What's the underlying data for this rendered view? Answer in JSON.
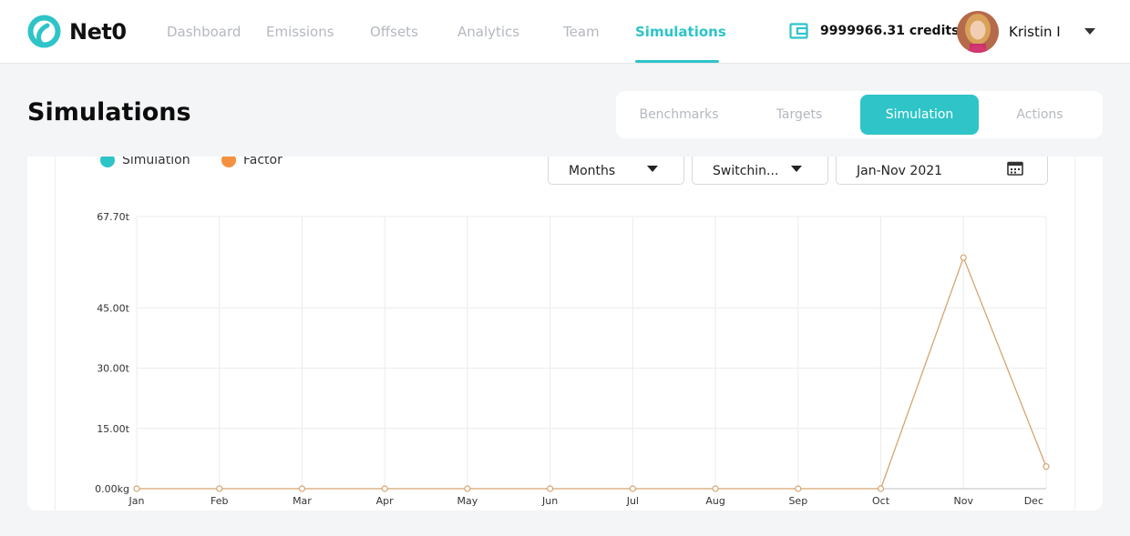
{
  "app": {
    "brand": "Net0",
    "colors": {
      "accent": "#2ec4c8",
      "factor": "#f5913e",
      "factor_line": "#d4a570"
    }
  },
  "nav": {
    "items": [
      {
        "label": "Dashboard"
      },
      {
        "label": "Emissions"
      },
      {
        "label": "Offsets"
      },
      {
        "label": "Analytics"
      },
      {
        "label": "Team"
      },
      {
        "label": "Simulations"
      }
    ],
    "active": "Simulations"
  },
  "account": {
    "credits": "9999966.31 credits",
    "user_name": "Kristin I"
  },
  "page": {
    "title": "Simulations",
    "tabs": [
      {
        "label": "Benchmarks"
      },
      {
        "label": "Targets"
      },
      {
        "label": "Simulation"
      },
      {
        "label": "Actions"
      }
    ],
    "active_tab": "Simulation"
  },
  "controls": {
    "period": "Months",
    "scenario": "Switchin...",
    "date_range": "Jan-Nov 2021"
  },
  "legend": [
    {
      "label": "Simulation",
      "color": "#2ec4c8"
    },
    {
      "label": "Factor",
      "color": "#f5913e"
    }
  ],
  "chart_data": {
    "type": "line",
    "categories": [
      "Jan",
      "Feb",
      "Mar",
      "Apr",
      "May",
      "Jun",
      "Jul",
      "Aug",
      "Sep",
      "Oct",
      "Nov",
      "Dec"
    ],
    "ytick_labels": [
      "0.00kg",
      "15.00t",
      "30.00t",
      "45.00t",
      "67.70t"
    ],
    "yticks": [
      0,
      15,
      30,
      45,
      67.7
    ],
    "ylim": [
      0,
      67.7
    ],
    "series": [
      {
        "name": "Factor",
        "color": "#d4a570",
        "values": [
          0,
          0,
          0,
          0,
          0,
          0,
          0,
          0,
          0,
          0,
          57.5,
          5.5
        ]
      }
    ],
    "grid": true,
    "legend_position": "top-left"
  }
}
